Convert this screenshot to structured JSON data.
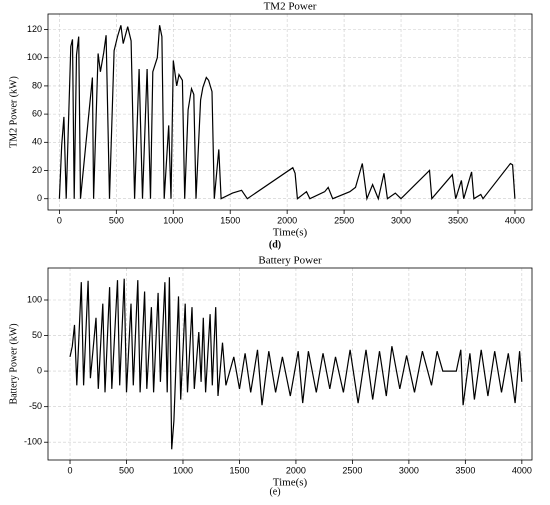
{
  "chart_data": [
    {
      "type": "line",
      "title": "TM2 Power",
      "xlabel": "Time(s)",
      "ylabel": "TM2 Power (kW)",
      "caption": "(d)",
      "color": "#000000",
      "grid": true,
      "xlim": [
        -100,
        4150
      ],
      "ylim": [
        -8,
        131
      ],
      "xticks": [
        0,
        500,
        1000,
        1500,
        2000,
        2500,
        3000,
        3500,
        4000
      ],
      "yticks": [
        0,
        20,
        40,
        60,
        80,
        100,
        120
      ],
      "x": [
        0,
        20,
        40,
        60,
        100,
        115,
        130,
        150,
        170,
        185,
        290,
        300,
        340,
        360,
        390,
        410,
        440,
        480,
        510,
        540,
        560,
        600,
        630,
        660,
        700,
        730,
        770,
        800,
        820,
        860,
        880,
        900,
        920,
        960,
        980,
        1000,
        1030,
        1050,
        1080,
        1100,
        1130,
        1160,
        1180,
        1200,
        1240,
        1260,
        1290,
        1310,
        1340,
        1360,
        1400,
        1420,
        1520,
        1560,
        1600,
        1650,
        2050,
        2070,
        2090,
        2170,
        2200,
        2330,
        2360,
        2400,
        2550,
        2600,
        2660,
        2700,
        2750,
        2800,
        2850,
        2880,
        2950,
        3000,
        3250,
        3270,
        3450,
        3480,
        3530,
        3550,
        3620,
        3640,
        3700,
        3720,
        3960,
        3980,
        4000
      ],
      "values": [
        0,
        38,
        58,
        0,
        108,
        113,
        0,
        102,
        115,
        0,
        86,
        0,
        103,
        90,
        104,
        116,
        0,
        105,
        115,
        123,
        110,
        122,
        112,
        0,
        92,
        0,
        92,
        0,
        90,
        100,
        123,
        115,
        0,
        52,
        0,
        98,
        80,
        88,
        84,
        0,
        63,
        78,
        74,
        0,
        70,
        79,
        86,
        84,
        76,
        0,
        35,
        0,
        4,
        5,
        6,
        0,
        22,
        18,
        0,
        5,
        0,
        5,
        8,
        0,
        5,
        8,
        25,
        0,
        10,
        0,
        18,
        0,
        4,
        0,
        20,
        0,
        17,
        0,
        13,
        0,
        19,
        0,
        3,
        0,
        25,
        24,
        0
      ]
    },
    {
      "type": "line",
      "title": "Battery Power",
      "xlabel": "Time(s)",
      "ylabel": "Battery Power (kW)",
      "caption": "(e)",
      "color": "#000000",
      "grid": true,
      "xlim": [
        -195,
        4090
      ],
      "ylim": [
        -125,
        145
      ],
      "xticks": [
        0,
        500,
        1000,
        1500,
        2000,
        2500,
        3000,
        3500,
        4000
      ],
      "yticks": [
        -100,
        -50,
        0,
        50,
        100
      ],
      "x": [
        0,
        20,
        40,
        60,
        100,
        120,
        160,
        180,
        230,
        250,
        290,
        310,
        350,
        370,
        420,
        440,
        480,
        500,
        540,
        560,
        600,
        620,
        660,
        680,
        720,
        740,
        780,
        800,
        840,
        860,
        880,
        900,
        920,
        960,
        980,
        1020,
        1040,
        1080,
        1100,
        1140,
        1160,
        1180,
        1200,
        1240,
        1260,
        1290,
        1310,
        1350,
        1380,
        1450,
        1500,
        1550,
        1600,
        1660,
        1700,
        1760,
        1820,
        1880,
        1950,
        2020,
        2060,
        2110,
        2180,
        2240,
        2300,
        2350,
        2420,
        2480,
        2550,
        2620,
        2680,
        2740,
        2800,
        2850,
        2920,
        2980,
        3050,
        3120,
        3200,
        3250,
        3300,
        3420,
        3460,
        3480,
        3540,
        3580,
        3640,
        3700,
        3760,
        3820,
        3880,
        3940,
        3980,
        4000
      ],
      "values": [
        20,
        35,
        65,
        -20,
        125,
        -20,
        127,
        -10,
        75,
        -25,
        95,
        -30,
        118,
        -25,
        128,
        -20,
        130,
        -30,
        95,
        -20,
        128,
        -30,
        112,
        -25,
        90,
        -30,
        110,
        -15,
        125,
        -30,
        132,
        -110,
        -70,
        105,
        -40,
        95,
        -30,
        90,
        -25,
        55,
        -15,
        75,
        -30,
        80,
        -20,
        90,
        -35,
        40,
        -20,
        20,
        -25,
        25,
        -30,
        30,
        -48,
        28,
        -30,
        20,
        -35,
        28,
        -45,
        28,
        -30,
        25,
        -25,
        20,
        -30,
        30,
        -45,
        30,
        -40,
        28,
        -35,
        35,
        -25,
        22,
        -30,
        28,
        -20,
        28,
        0,
        0,
        30,
        -48,
        25,
        -40,
        30,
        -35,
        28,
        -30,
        25,
        -45,
        28,
        -15
      ]
    }
  ]
}
